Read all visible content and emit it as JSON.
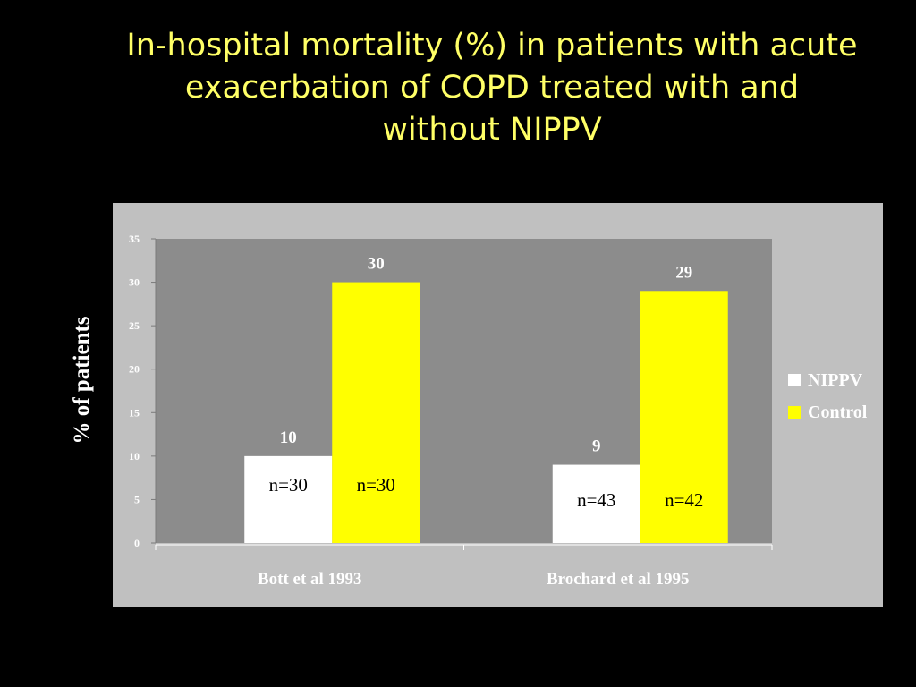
{
  "slide": {
    "title": "In-hospital mortality (%) in patients with acute exacerbation of COPD treated with and without NIPPV"
  },
  "colors": {
    "background": "#000000",
    "title": "#ffff66",
    "panel": "#c0c0c0",
    "plot_area": "#8c8c8c",
    "NIPPV": "#ffffff",
    "Control": "#ffff00"
  },
  "chart_data": {
    "type": "bar",
    "title": "",
    "ylabel": "%  of patients",
    "xlabel": "",
    "categories": [
      "Bott et al 1993",
      "Brochard et al 1995"
    ],
    "series": [
      {
        "name": "NIPPV",
        "values": [
          10,
          9
        ],
        "labels": [
          "10",
          "9"
        ],
        "n": [
          "n=30",
          "n=43"
        ]
      },
      {
        "name": "Control",
        "values": [
          30,
          29
        ],
        "labels": [
          "30",
          "29"
        ],
        "n": [
          "n=30",
          "n=42"
        ]
      }
    ],
    "ylim": [
      0,
      35
    ],
    "yticks": [
      "0",
      "5",
      "10",
      "15",
      "20",
      "25",
      "30",
      "35"
    ],
    "legend_position": "right",
    "grid": false
  }
}
